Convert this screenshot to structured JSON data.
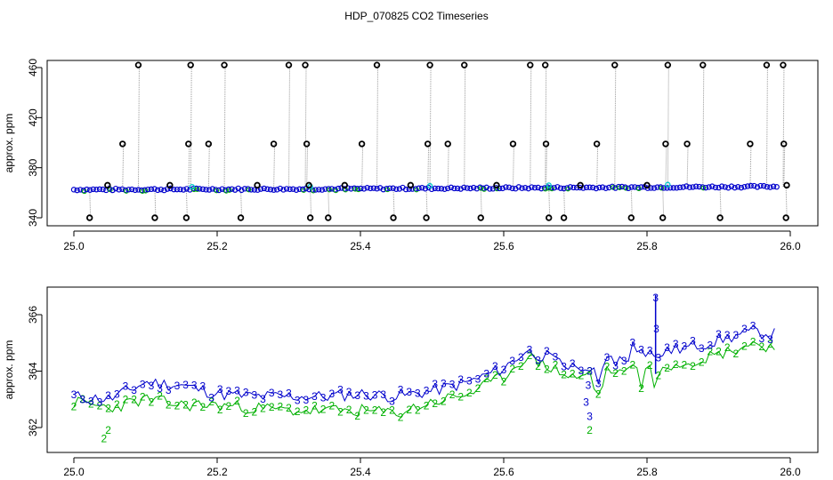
{
  "title": "HDP_070825  CO2 Timeseries",
  "colors": {
    "raw_points": "#000000",
    "raw_lines": "#9a9a9a",
    "series_3": "#0000cc",
    "series_2": "#00b000",
    "accent_cyan": "#00c8c8"
  },
  "chart_data": [
    {
      "type": "scatter",
      "title": "HDP_070825  CO2 Timeseries",
      "xlabel": "",
      "ylabel": "approx. ppm",
      "xlim": [
        25.0,
        26.0
      ],
      "ylim": [
        338,
        462
      ],
      "x_ticks": [
        25.0,
        25.2,
        25.4,
        25.6,
        25.8,
        26.0
      ],
      "x_tick_labels": [
        "25.0",
        "25.2",
        "25.4",
        "25.6",
        "25.8",
        "26.0"
      ],
      "y_ticks": [
        340,
        380,
        420,
        460
      ],
      "y_tick_labels": [
        "340",
        "380",
        "420",
        "460"
      ],
      "grid": false,
      "series": [
        {
          "marker": "open-circle",
          "color": "#000000",
          "baseline_x": [
            25.0,
            25.33,
            25.66,
            26.0
          ],
          "baseline_y": [
            362.5,
            363.0,
            364.0,
            365.0
          ],
          "spikes": [
            {
              "x": 25.022,
              "y": 340
            },
            {
              "x": 25.047,
              "y": 366
            },
            {
              "x": 25.068,
              "y": 399
            },
            {
              "x": 25.09,
              "y": 462
            },
            {
              "x": 25.113,
              "y": 340
            },
            {
              "x": 25.134,
              "y": 366
            },
            {
              "x": 25.157,
              "y": 340
            },
            {
              "x": 25.16,
              "y": 399
            },
            {
              "x": 25.163,
              "y": 462
            },
            {
              "x": 25.188,
              "y": 399
            },
            {
              "x": 25.21,
              "y": 462
            },
            {
              "x": 25.233,
              "y": 340
            },
            {
              "x": 25.256,
              "y": 366
            },
            {
              "x": 25.279,
              "y": 399
            },
            {
              "x": 25.3,
              "y": 462
            },
            {
              "x": 25.323,
              "y": 462
            },
            {
              "x": 25.325,
              "y": 399
            },
            {
              "x": 25.33,
              "y": 340
            },
            {
              "x": 25.328,
              "y": 366
            },
            {
              "x": 25.355,
              "y": 340
            },
            {
              "x": 25.378,
              "y": 366
            },
            {
              "x": 25.402,
              "y": 399
            },
            {
              "x": 25.423,
              "y": 462
            },
            {
              "x": 25.446,
              "y": 340
            },
            {
              "x": 25.47,
              "y": 366
            },
            {
              "x": 25.492,
              "y": 340
            },
            {
              "x": 25.494,
              "y": 399
            },
            {
              "x": 25.497,
              "y": 462
            },
            {
              "x": 25.522,
              "y": 399
            },
            {
              "x": 25.545,
              "y": 462
            },
            {
              "x": 25.568,
              "y": 340
            },
            {
              "x": 25.59,
              "y": 366
            },
            {
              "x": 25.613,
              "y": 399
            },
            {
              "x": 25.637,
              "y": 462
            },
            {
              "x": 25.658,
              "y": 462
            },
            {
              "x": 25.659,
              "y": 399
            },
            {
              "x": 25.663,
              "y": 340
            },
            {
              "x": 25.684,
              "y": 340
            },
            {
              "x": 25.707,
              "y": 366
            },
            {
              "x": 25.73,
              "y": 399
            },
            {
              "x": 25.755,
              "y": 462
            },
            {
              "x": 25.778,
              "y": 340
            },
            {
              "x": 25.8,
              "y": 366
            },
            {
              "x": 25.822,
              "y": 340
            },
            {
              "x": 25.826,
              "y": 399
            },
            {
              "x": 25.829,
              "y": 462
            },
            {
              "x": 25.856,
              "y": 399
            },
            {
              "x": 25.878,
              "y": 462
            },
            {
              "x": 25.902,
              "y": 340
            },
            {
              "x": 25.944,
              "y": 399
            },
            {
              "x": 25.967,
              "y": 462
            },
            {
              "x": 25.99,
              "y": 462
            },
            {
              "x": 25.991,
              "y": 399
            },
            {
              "x": 25.994,
              "y": 340
            },
            {
              "x": 25.995,
              "y": 366
            }
          ]
        }
      ]
    },
    {
      "type": "line",
      "title": "",
      "xlabel": "",
      "ylabel": "approx. ppm",
      "xlim": [
        25.0,
        26.0
      ],
      "ylim": [
        361.1,
        367.3
      ],
      "x_ticks": [
        25.0,
        25.2,
        25.4,
        25.6,
        25.8,
        26.0
      ],
      "x_tick_labels": [
        "25.0",
        "25.2",
        "25.4",
        "25.6",
        "25.8",
        "26.0"
      ],
      "y_ticks": [
        362,
        364,
        366
      ],
      "y_tick_labels": [
        "362",
        "364",
        "366"
      ],
      "grid": false,
      "series": [
        {
          "marker": "3",
          "color": "#0000cc",
          "x": [
            25.0,
            25.05,
            25.1,
            25.15,
            25.2,
            25.25,
            25.3,
            25.35,
            25.4,
            25.45,
            25.5,
            25.55,
            25.6,
            25.63,
            25.66,
            25.7,
            25.75,
            25.8,
            25.85,
            25.9,
            25.95,
            25.98
          ],
          "y": [
            363.1,
            363.0,
            363.6,
            363.5,
            363.2,
            363.1,
            363.1,
            363.1,
            363.2,
            363.1,
            363.3,
            363.6,
            364.1,
            364.7,
            364.5,
            364.0,
            364.4,
            364.6,
            364.8,
            365.1,
            365.4,
            365.3
          ]
        },
        {
          "marker": "2",
          "color": "#00b000",
          "x": [
            25.0,
            25.05,
            25.1,
            25.15,
            25.2,
            25.25,
            25.3,
            25.35,
            25.4,
            25.45,
            25.5,
            25.55,
            25.6,
            25.63,
            25.66,
            25.7,
            25.75,
            25.8,
            25.85,
            25.9,
            25.95,
            25.98
          ],
          "y": [
            362.9,
            362.7,
            363.0,
            362.8,
            362.8,
            362.7,
            362.6,
            362.6,
            362.6,
            362.5,
            362.9,
            363.2,
            363.8,
            364.5,
            364.2,
            363.7,
            364.0,
            364.1,
            364.3,
            364.6,
            365.0,
            364.8
          ]
        }
      ]
    }
  ]
}
